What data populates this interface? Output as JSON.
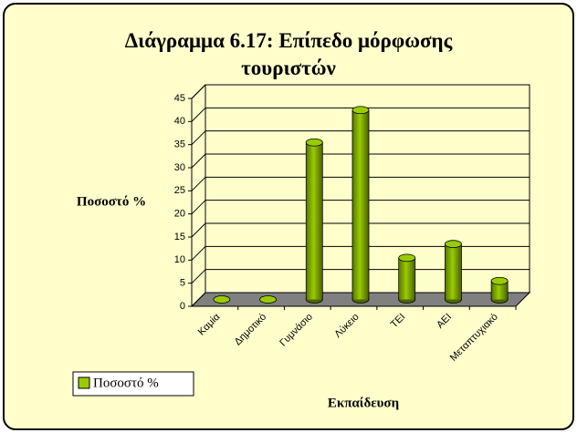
{
  "chart_data": {
    "type": "bar",
    "title": "Διάγραμμα 6.17: Επίπεδο μόρφωσης τουριστών",
    "y_label": "Ποσοστό %",
    "x_label": "Εκπαίδευση",
    "categories": [
      "Καμία",
      "Δημοτικό",
      "Γυμνάσιο",
      "Λύκειο",
      "ΤΕΙ",
      "ΑΕΙ",
      "Μεταπτυχιακό"
    ],
    "series": [
      {
        "name": "Ποσοστό %",
        "color": "#99cc00",
        "values": [
          0,
          0,
          34,
          41,
          9,
          12,
          4
        ]
      }
    ],
    "ylim": [
      0,
      45
    ],
    "yticks": [
      0,
      5,
      10,
      15,
      20,
      25,
      30,
      35,
      40,
      45
    ],
    "grid": true,
    "legend": "bottom-left"
  }
}
